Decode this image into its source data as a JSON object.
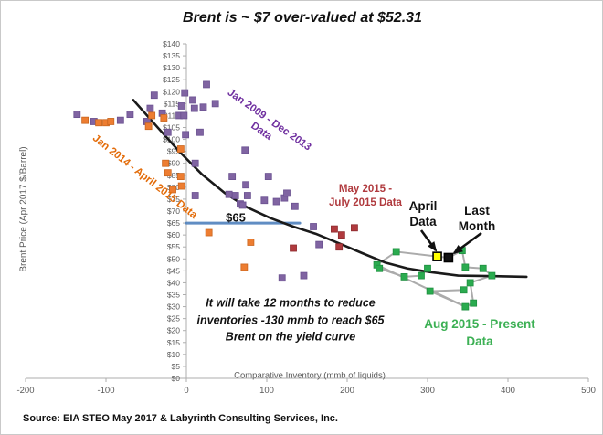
{
  "title": "Brent is ~ $7 over-valued at $52.31",
  "source": "Source: EIA STEO May 2017 & Labyrinth Consulting Services, Inc.",
  "chart_data": {
    "type": "scatter",
    "title": "Brent is ~ $7 over-valued at $52.31",
    "xlabel": "Comparative Inventory (mmb of liquids)",
    "ylabel": "Brent Price (Apr 2017 $/Barrel)",
    "xlim": [
      -200,
      500
    ],
    "ylim": [
      0,
      140
    ],
    "x_ticks": [
      -200,
      -100,
      0,
      100,
      200,
      300,
      400,
      500
    ],
    "y_tick_step": 5,
    "y_tick_prefix": "$",
    "grid": false,
    "legend": "none (series labeled by colored on-chart text)",
    "series": [
      {
        "name": "Jan 2009 - Dec 2013 Data",
        "marker": "square",
        "color": "#8064a2",
        "edge": "#6a5190",
        "points": [
          [
            -136,
            110.5
          ],
          [
            -115,
            107.5
          ],
          [
            -82,
            108
          ],
          [
            -70,
            110.5
          ],
          [
            -49,
            107.5
          ],
          [
            -45,
            113
          ],
          [
            -40,
            118.5
          ],
          [
            -30,
            111
          ],
          [
            -23,
            103
          ],
          [
            25,
            123
          ],
          [
            -2,
            119.5
          ],
          [
            8,
            116.5
          ],
          [
            21,
            113.5
          ],
          [
            36,
            115
          ],
          [
            10,
            113
          ],
          [
            -6,
            114
          ],
          [
            -9,
            110
          ],
          [
            -3,
            110
          ],
          [
            17,
            103
          ],
          [
            -1,
            102
          ],
          [
            11,
            90
          ],
          [
            73,
            95.5
          ],
          [
            57,
            84.5
          ],
          [
            74,
            81
          ],
          [
            102,
            84.5
          ],
          [
            11,
            76.5
          ],
          [
            53,
            77
          ],
          [
            61,
            76.5
          ],
          [
            67,
            73
          ],
          [
            70,
            72.5
          ],
          [
            76,
            76.5
          ],
          [
            97,
            74.5
          ],
          [
            112,
            74
          ],
          [
            122,
            75.5
          ],
          [
            125,
            77.5
          ],
          [
            135,
            72
          ],
          [
            158,
            63.5
          ],
          [
            165,
            56
          ],
          [
            119,
            42
          ],
          [
            146,
            43
          ]
        ]
      },
      {
        "name": "Jan 2014 - April 2015 Data",
        "marker": "square",
        "color": "#ed7d31",
        "edge": "#c9661f",
        "points": [
          [
            -126,
            108
          ],
          [
            -109,
            107
          ],
          [
            -100,
            107
          ],
          [
            -94,
            107.5
          ],
          [
            -47,
            105.5
          ],
          [
            -43,
            110
          ],
          [
            -28,
            109
          ],
          [
            -26,
            90
          ],
          [
            -23,
            86
          ],
          [
            -17,
            79
          ],
          [
            -7,
            96
          ],
          [
            -7,
            84.5
          ],
          [
            -6,
            80.5
          ],
          [
            28,
            61
          ],
          [
            80,
            57
          ],
          [
            72,
            46.5
          ]
        ]
      },
      {
        "name": "May 2015 - July 2015 Data",
        "marker": "square",
        "color": "#b03a3e",
        "edge": "#8e2b2e",
        "points": [
          [
            133,
            54.5
          ],
          [
            184,
            62.5
          ],
          [
            193,
            60
          ],
          [
            209,
            63
          ],
          [
            190,
            55
          ]
        ]
      },
      {
        "name": "Aug 2015 - Present Data",
        "marker": "square",
        "color": "#2aab4f",
        "edge": "#1f8f40",
        "connected": true,
        "line_color": "#ababab",
        "points": [
          [
            261,
            53
          ],
          [
            237,
            47.5
          ],
          [
            240,
            46
          ],
          [
            271,
            42.5
          ],
          [
            292,
            43
          ],
          [
            300,
            46
          ],
          [
            303,
            36.5
          ],
          [
            347,
            30
          ],
          [
            357,
            31.5
          ],
          [
            353,
            40
          ],
          [
            345,
            37
          ],
          [
            347,
            46.5
          ],
          [
            369,
            46
          ],
          [
            380,
            43
          ],
          [
            343,
            53.5
          ]
        ]
      },
      {
        "name": "April Data",
        "marker": "square",
        "color": "#ffff00",
        "edge": "#000000",
        "highlight": true,
        "points": [
          [
            312,
            51
          ]
        ]
      },
      {
        "name": "Last Month",
        "marker": "square",
        "color": "#141414",
        "edge": "#000000",
        "highlight": true,
        "points": [
          [
            326,
            50.5
          ]
        ]
      }
    ],
    "connector_path": [
      [
        300,
        46
      ],
      [
        292,
        43
      ],
      [
        271,
        42.5
      ],
      [
        240,
        46
      ],
      [
        237,
        47.5
      ],
      [
        261,
        53
      ],
      [
        312,
        51
      ],
      [
        326,
        50.5
      ],
      [
        343,
        53.5
      ],
      [
        347,
        46.5
      ],
      [
        369,
        46
      ],
      [
        380,
        43
      ],
      [
        353,
        40
      ],
      [
        357,
        31.5
      ],
      [
        347,
        30
      ],
      [
        303,
        36.5
      ],
      [
        345,
        37
      ]
    ],
    "connector_extra_segments": [
      [
        [
          237,
          47.5
        ],
        [
          347,
          30
        ]
      ]
    ],
    "yield_curve": {
      "name": "yield curve",
      "color": "#1a1a1a",
      "points": [
        [
          -66,
          116.5
        ],
        [
          -37,
          105.5
        ],
        [
          -9,
          95
        ],
        [
          19,
          85.5
        ],
        [
          48,
          77.5
        ],
        [
          76,
          71.5
        ],
        [
          105,
          67
        ],
        [
          133,
          63.5
        ],
        [
          161,
          60.5
        ],
        [
          190,
          56.5
        ],
        [
          218,
          52.5
        ],
        [
          247,
          48.5
        ],
        [
          275,
          46
        ],
        [
          303,
          44.5
        ],
        [
          338,
          43
        ],
        [
          377,
          42.8
        ],
        [
          423,
          42.5
        ]
      ]
    },
    "price_line": {
      "label": "$65",
      "value": 65,
      "x_start": 0,
      "x_end": 141,
      "color": "#4f81bd"
    }
  },
  "annotations": {
    "jan2009": {
      "line1": "Jan 2009 - Dec 2013",
      "line2": "Data",
      "color": "#7030a0"
    },
    "jan2014": {
      "text": "Jan 2014 - April 2015 Data",
      "color": "#e36c0a"
    },
    "may2015": {
      "line1": "May 2015 -",
      "line2": "July 2015 Data",
      "color": "#b03a3e"
    },
    "april_data": {
      "line1": "April",
      "line2": "Data"
    },
    "last_month": {
      "line1": "Last",
      "line2": "Month"
    },
    "price65": {
      "text": "$65"
    },
    "note": {
      "line1": "It will take 12 months to reduce",
      "line2": "inventories -130 mmb to reach $65",
      "line3": "Brent on the yield curve"
    },
    "aug2015": {
      "line1": "Aug 2015 - Present",
      "line2": "Data",
      "color": "#3cb054"
    }
  }
}
